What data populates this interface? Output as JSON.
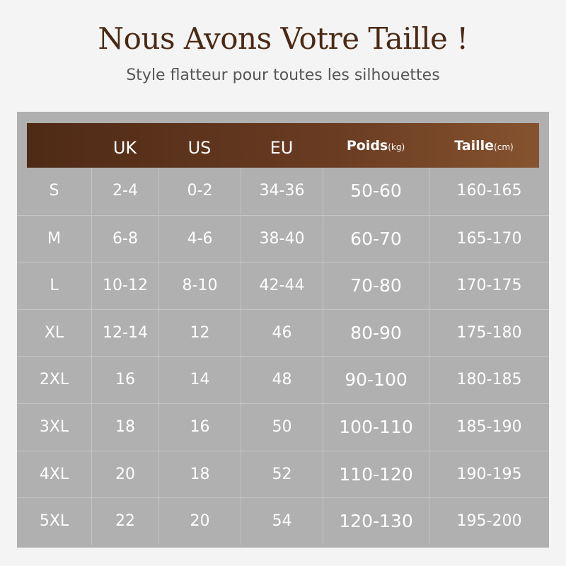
{
  "title": "Nous Avons Votre Taille !",
  "subtitle": "Style flatteur pour toutes les silhouettes",
  "colors": {
    "header_start": "#4e2a16",
    "header_end": "#86532f",
    "table_bg": "#b0b0b0",
    "title": "#4b2914"
  },
  "headers": [
    {
      "label": ""
    },
    {
      "label": "UK"
    },
    {
      "label": "US"
    },
    {
      "label": "EU"
    },
    {
      "label": "Poids",
      "unit": "(kg)"
    },
    {
      "label": "Taille",
      "unit": "(cm)"
    }
  ],
  "rows": [
    [
      "S",
      "2-4",
      "0-2",
      "34-36",
      "50-60",
      "160-165"
    ],
    [
      "M",
      "6-8",
      "4-6",
      "38-40",
      "60-70",
      "165-170"
    ],
    [
      "L",
      "10-12",
      "8-10",
      "42-44",
      "70-80",
      "170-175"
    ],
    [
      "XL",
      "12-14",
      "12",
      "46",
      "80-90",
      "175-180"
    ],
    [
      "2XL",
      "16",
      "14",
      "48",
      "90-100",
      "180-185"
    ],
    [
      "3XL",
      "18",
      "16",
      "50",
      "100-110",
      "185-190"
    ],
    [
      "4XL",
      "20",
      "18",
      "52",
      "110-120",
      "190-195"
    ],
    [
      "5XL",
      "22",
      "20",
      "54",
      "120-130",
      "195-200"
    ]
  ]
}
